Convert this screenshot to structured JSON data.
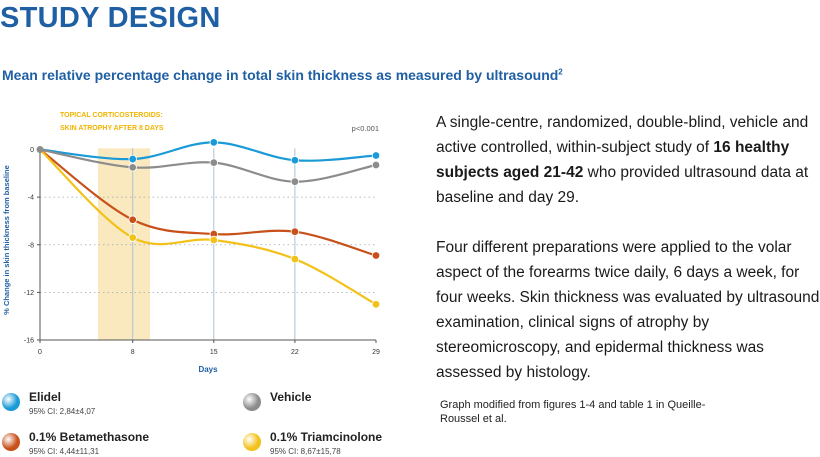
{
  "page": {
    "title": "STUDY DESIGN",
    "subtitle": "Mean relative percentage change in total skin thickness as measured by ultrasound",
    "subtitle_ref": "2"
  },
  "chart_data": {
    "type": "line",
    "x": [
      0,
      8,
      15,
      22,
      29
    ],
    "xticks": [
      "0",
      "8",
      "15",
      "22",
      "29"
    ],
    "yticks": [
      "0",
      "-4",
      "-8",
      "-12",
      "-16"
    ],
    "xlabel": "Days",
    "ylabel": "% Change in skin thickness from baseline",
    "xlim": [
      0,
      29
    ],
    "ylim": [
      -16,
      0.8
    ],
    "grid": "dotted horizontal at y ticks; vertical lines at x = 8, 15, 22",
    "annotation_line1": "TOPICAL CORTICOSTEROIDS:",
    "annotation_line2": "SKIN ATROPHY AFTER 8 DAYS",
    "highlight_x_range": [
      5,
      9.5
    ],
    "pvalue": "p<0.001",
    "series": [
      {
        "name": "Elidel",
        "color": "#1a9ad6",
        "values": [
          0,
          -0.8,
          0.6,
          -0.9,
          -0.5
        ]
      },
      {
        "name": "Vehicle",
        "color": "#8c8c8c",
        "values": [
          0,
          -1.5,
          -1.1,
          -2.7,
          -1.3
        ]
      },
      {
        "name": "0.1% Betamethasone",
        "color": "#c8501a",
        "values": [
          0,
          -5.9,
          -7.1,
          -6.9,
          -8.9
        ]
      },
      {
        "name": "0.1% Triamcinolone",
        "color": "#f2c21a",
        "values": [
          0,
          -7.4,
          -7.6,
          -9.2,
          -13.0
        ]
      }
    ]
  },
  "legend": [
    {
      "name": "Elidel",
      "ci": "95% CI: 2,84±4,07",
      "color": "#1a9ad6"
    },
    {
      "name": "Vehicle",
      "ci": "",
      "color": "#8c8c8c"
    },
    {
      "name": "0.1% Betamethasone",
      "ci": "95% CI: 4,44±11,31",
      "color": "#c8501a"
    },
    {
      "name": "0.1% Triamcinolone",
      "ci": "95% CI: 8,67±15,78",
      "color": "#f2c21a"
    }
  ],
  "description": {
    "p1_before": "A single-centre, randomized, double-blind, vehicle and active controlled, within-subject study of ",
    "p1_bold": "16 healthy subjects aged 21-42",
    "p1_after": " who provided ultrasound data at baseline and day 29.",
    "p2": "Four different preparations were applied to the volar aspect of the forearms twice daily, 6 days a week, for four weeks. Skin thickness was evaluated by ultrasound examination, clinical signs of atrophy by stereomicroscopy, and epidermal thickness was assessed by histology."
  },
  "source_note": "Graph modified from figures 1-4 and table 1 in Queille-Roussel et al."
}
